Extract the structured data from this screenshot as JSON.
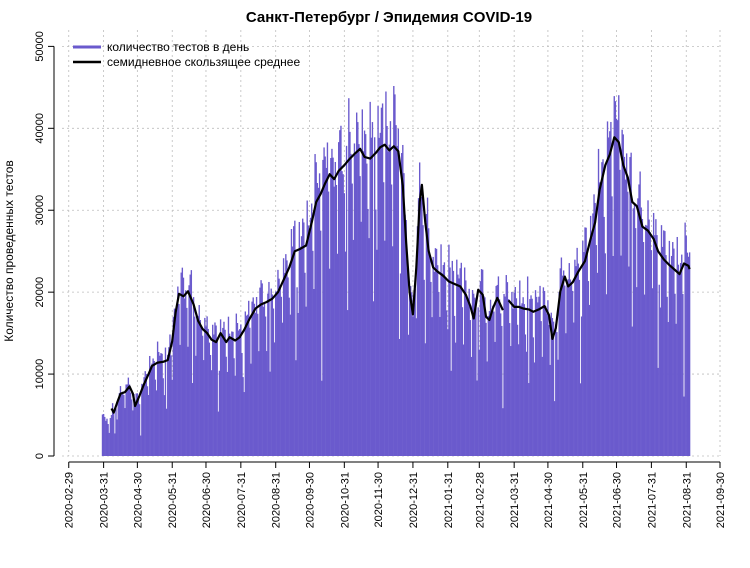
{
  "chart_data": {
    "type": "bar",
    "title": "Санкт-Петербург / Эпидемия COVID-19",
    "xlabel": "",
    "ylabel": "Количество проведенных тестов",
    "ylim": [
      0,
      52000
    ],
    "y_ticks": [
      0,
      10000,
      20000,
      30000,
      40000,
      50000
    ],
    "x_range": [
      "2020-02-23",
      "2021-09-30"
    ],
    "x_ticks": [
      "2020-02-29",
      "2020-03-31",
      "2020-04-30",
      "2020-05-31",
      "2020-06-30",
      "2020-07-31",
      "2020-08-31",
      "2020-09-30",
      "2020-10-31",
      "2020-11-30",
      "2020-12-31",
      "2021-01-31",
      "2021-02-28",
      "2021-03-31",
      "2021-04-30",
      "2021-05-31",
      "2021-06-30",
      "2021-07-31",
      "2021-08-31",
      "2021-09-30"
    ],
    "grid": true,
    "legend_position": "top-left",
    "colors": {
      "bars": "#6a5acd",
      "line": "#000000",
      "grid": "#bdbdbd"
    },
    "series": [
      {
        "name": "количество тестов в день",
        "kind": "bar",
        "color": "#6a5acd",
        "start_date": "2020-03-30",
        "end_date": "2021-09-03"
      },
      {
        "name": "семидневное скользящее среднее",
        "kind": "line",
        "color": "#000000",
        "gaps": [
          [
            "2021-03-21",
            "2021-03-26"
          ]
        ],
        "points": [
          [
            "2020-04-07",
            5800
          ],
          [
            "2020-04-09",
            5300
          ],
          [
            "2020-04-12",
            6500
          ],
          [
            "2020-04-15",
            7600
          ],
          [
            "2020-04-19",
            7800
          ],
          [
            "2020-04-23",
            8500
          ],
          [
            "2020-04-26",
            7600
          ],
          [
            "2020-04-28",
            6100
          ],
          [
            "2020-05-02",
            7400
          ],
          [
            "2020-05-06",
            8800
          ],
          [
            "2020-05-10",
            10000
          ],
          [
            "2020-05-13",
            11000
          ],
          [
            "2020-05-18",
            11400
          ],
          [
            "2020-05-23",
            11500
          ],
          [
            "2020-05-27",
            11700
          ],
          [
            "2020-05-31",
            14000
          ],
          [
            "2020-06-03",
            17500
          ],
          [
            "2020-06-06",
            19800
          ],
          [
            "2020-06-10",
            19500
          ],
          [
            "2020-06-14",
            20100
          ],
          [
            "2020-06-19",
            18500
          ],
          [
            "2020-06-23",
            16500
          ],
          [
            "2020-06-27",
            15500
          ],
          [
            "2020-07-01",
            15000
          ],
          [
            "2020-07-05",
            14200
          ],
          [
            "2020-07-09",
            13900
          ],
          [
            "2020-07-13",
            15000
          ],
          [
            "2020-07-18",
            13900
          ],
          [
            "2020-07-21",
            14500
          ],
          [
            "2020-07-26",
            14100
          ],
          [
            "2020-07-30",
            14500
          ],
          [
            "2020-08-03",
            15400
          ],
          [
            "2020-08-08",
            16800
          ],
          [
            "2020-08-13",
            18000
          ],
          [
            "2020-08-18",
            18500
          ],
          [
            "2020-08-23",
            18800
          ],
          [
            "2020-08-28",
            19200
          ],
          [
            "2020-09-02",
            20000
          ],
          [
            "2020-09-07",
            21500
          ],
          [
            "2020-09-12",
            23000
          ],
          [
            "2020-09-17",
            25000
          ],
          [
            "2020-09-22",
            25300
          ],
          [
            "2020-09-27",
            25700
          ],
          [
            "2020-10-02",
            28500
          ],
          [
            "2020-10-06",
            31000
          ],
          [
            "2020-10-10",
            32000
          ],
          [
            "2020-10-14",
            33300
          ],
          [
            "2020-10-18",
            34400
          ],
          [
            "2020-10-22",
            33800
          ],
          [
            "2020-10-26",
            34800
          ],
          [
            "2020-10-31",
            35500
          ],
          [
            "2020-11-05",
            36300
          ],
          [
            "2020-11-10",
            37000
          ],
          [
            "2020-11-14",
            37500
          ],
          [
            "2020-11-18",
            36500
          ],
          [
            "2020-11-23",
            36300
          ],
          [
            "2020-11-28",
            37000
          ],
          [
            "2020-12-02",
            37700
          ],
          [
            "2020-12-06",
            38000
          ],
          [
            "2020-12-10",
            37300
          ],
          [
            "2020-12-14",
            37800
          ],
          [
            "2020-12-18",
            37200
          ],
          [
            "2020-12-22",
            33000
          ],
          [
            "2020-12-25",
            26000
          ],
          [
            "2020-12-28",
            20000
          ],
          [
            "2020-12-31",
            17300
          ],
          [
            "2021-01-03",
            23000
          ],
          [
            "2021-01-06",
            31000
          ],
          [
            "2021-01-08",
            33100
          ],
          [
            "2021-01-11",
            28500
          ],
          [
            "2021-01-14",
            25000
          ],
          [
            "2021-01-18",
            23000
          ],
          [
            "2021-01-22",
            22500
          ],
          [
            "2021-01-27",
            22000
          ],
          [
            "2021-02-01",
            21300
          ],
          [
            "2021-02-06",
            21000
          ],
          [
            "2021-02-11",
            20700
          ],
          [
            "2021-02-16",
            19700
          ],
          [
            "2021-02-20",
            18300
          ],
          [
            "2021-02-23",
            16800
          ],
          [
            "2021-02-27",
            20300
          ],
          [
            "2021-03-03",
            19700
          ],
          [
            "2021-03-06",
            17000
          ],
          [
            "2021-03-09",
            16600
          ],
          [
            "2021-03-12",
            18000
          ],
          [
            "2021-03-16",
            19300
          ],
          [
            "2021-03-21",
            17800
          ],
          null,
          [
            "2021-03-26",
            19000
          ],
          [
            "2021-03-31",
            18200
          ],
          [
            "2021-04-04",
            18200
          ],
          [
            "2021-04-08",
            18000
          ],
          [
            "2021-04-13",
            17900
          ],
          [
            "2021-04-17",
            17600
          ],
          [
            "2021-04-22",
            17900
          ],
          [
            "2021-04-27",
            18300
          ],
          [
            "2021-05-01",
            17200
          ],
          [
            "2021-05-04",
            14300
          ],
          [
            "2021-05-07",
            15600
          ],
          [
            "2021-05-11",
            20100
          ],
          [
            "2021-05-15",
            21900
          ],
          [
            "2021-05-18",
            20700
          ],
          [
            "2021-05-22",
            21200
          ],
          [
            "2021-05-27",
            22500
          ],
          [
            "2021-06-02",
            23800
          ],
          [
            "2021-06-07",
            26500
          ],
          [
            "2021-06-11",
            28500
          ],
          [
            "2021-06-15",
            32500
          ],
          [
            "2021-06-20",
            35500
          ],
          [
            "2021-06-24",
            36800
          ],
          [
            "2021-06-28",
            38900
          ],
          [
            "2021-07-02",
            38300
          ],
          [
            "2021-07-06",
            35500
          ],
          [
            "2021-07-10",
            34000
          ],
          [
            "2021-07-14",
            31000
          ],
          [
            "2021-07-18",
            30500
          ],
          [
            "2021-07-23",
            28000
          ],
          [
            "2021-07-28",
            27500
          ],
          [
            "2021-08-02",
            26500
          ],
          [
            "2021-08-06",
            25000
          ],
          [
            "2021-08-11",
            24000
          ],
          [
            "2021-08-16",
            23300
          ],
          [
            "2021-08-21",
            22700
          ],
          [
            "2021-08-25",
            22200
          ],
          [
            "2021-08-29",
            23500
          ],
          [
            "2021-09-02",
            23200
          ],
          [
            "2021-09-03",
            22800
          ]
        ]
      }
    ]
  }
}
